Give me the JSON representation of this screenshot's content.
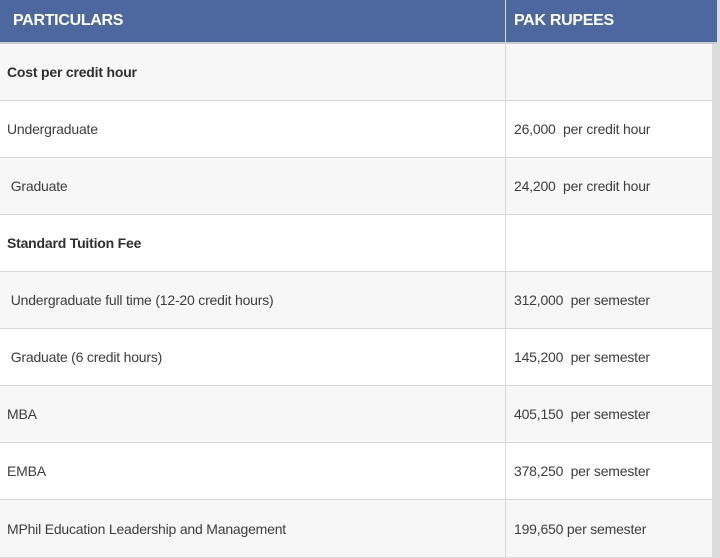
{
  "table": {
    "columns": [
      "PARTICULARS",
      "PAK RUPEES"
    ],
    "rows": [
      {
        "label": "Cost per credit hour",
        "value": "",
        "bold": true
      },
      {
        "label": "Undergraduate",
        "value": "26,000  per credit hour",
        "bold": false
      },
      {
        "label": " Graduate",
        "value": "24,200  per credit hour",
        "bold": false
      },
      {
        "label": "Standard Tuition Fee",
        "value": "",
        "bold": true
      },
      {
        "label": " Undergraduate full time (12-20 credit hours)",
        "value": "312,000  per semester",
        "bold": false
      },
      {
        "label": " Graduate (6 credit hours)",
        "value": "145,200  per semester",
        "bold": false
      },
      {
        "label": "MBA",
        "value": "405,150  per semester",
        "bold": false
      },
      {
        "label": "EMBA",
        "value": "378,250  per semester",
        "bold": false
      },
      {
        "label": "MPhil Education Leadership and Management",
        "value": "199,650 per semester",
        "bold": false
      }
    ]
  },
  "colors": {
    "header_bg": "#4d689f",
    "header_text": "#ffffff",
    "row_shaded_bg": "#f7f7f7",
    "row_plain_bg": "#ffffff",
    "border": "#d9d9d9",
    "body_text": "#3d3d3d"
  }
}
